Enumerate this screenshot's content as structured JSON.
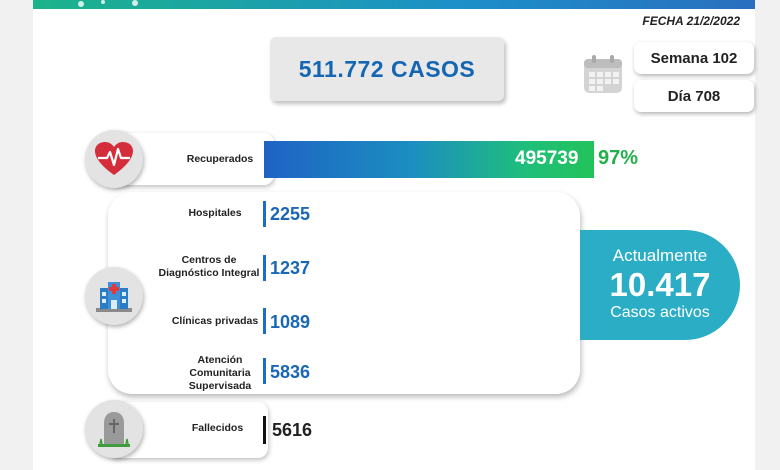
{
  "header": {
    "date": "FECHA 21/2/2022"
  },
  "total": {
    "label": "511.772 CASOS"
  },
  "week": {
    "label": "Semana 102"
  },
  "day": {
    "label": "Día 708"
  },
  "recovered": {
    "label": "Recuperados",
    "value": "495739",
    "percent": "97%"
  },
  "locations": [
    {
      "label_lines": [
        "Hospitales"
      ],
      "value": "2255"
    },
    {
      "label_lines": [
        "Centros de",
        "Diagnóstico Integral"
      ],
      "value": "1237"
    },
    {
      "label_lines": [
        "Clínicas privadas"
      ],
      "value": "1089"
    },
    {
      "label_lines": [
        "Atención",
        "Comunitaria",
        "Supervisada"
      ],
      "value": "5836"
    }
  ],
  "active": {
    "line1": "Actualmente",
    "value": "10.417",
    "line3": "Casos activos"
  },
  "deceased": {
    "label": "Fallecidos",
    "value": "5616"
  },
  "icons": {
    "recovered": "heart-pulse-icon",
    "hospital": "hospital-icon",
    "deceased": "tombstone-icon",
    "calendar": "calendar-icon"
  },
  "colors": {
    "primary": "#1466b3",
    "green": "#22b04a",
    "teal": "#2cadc6"
  }
}
